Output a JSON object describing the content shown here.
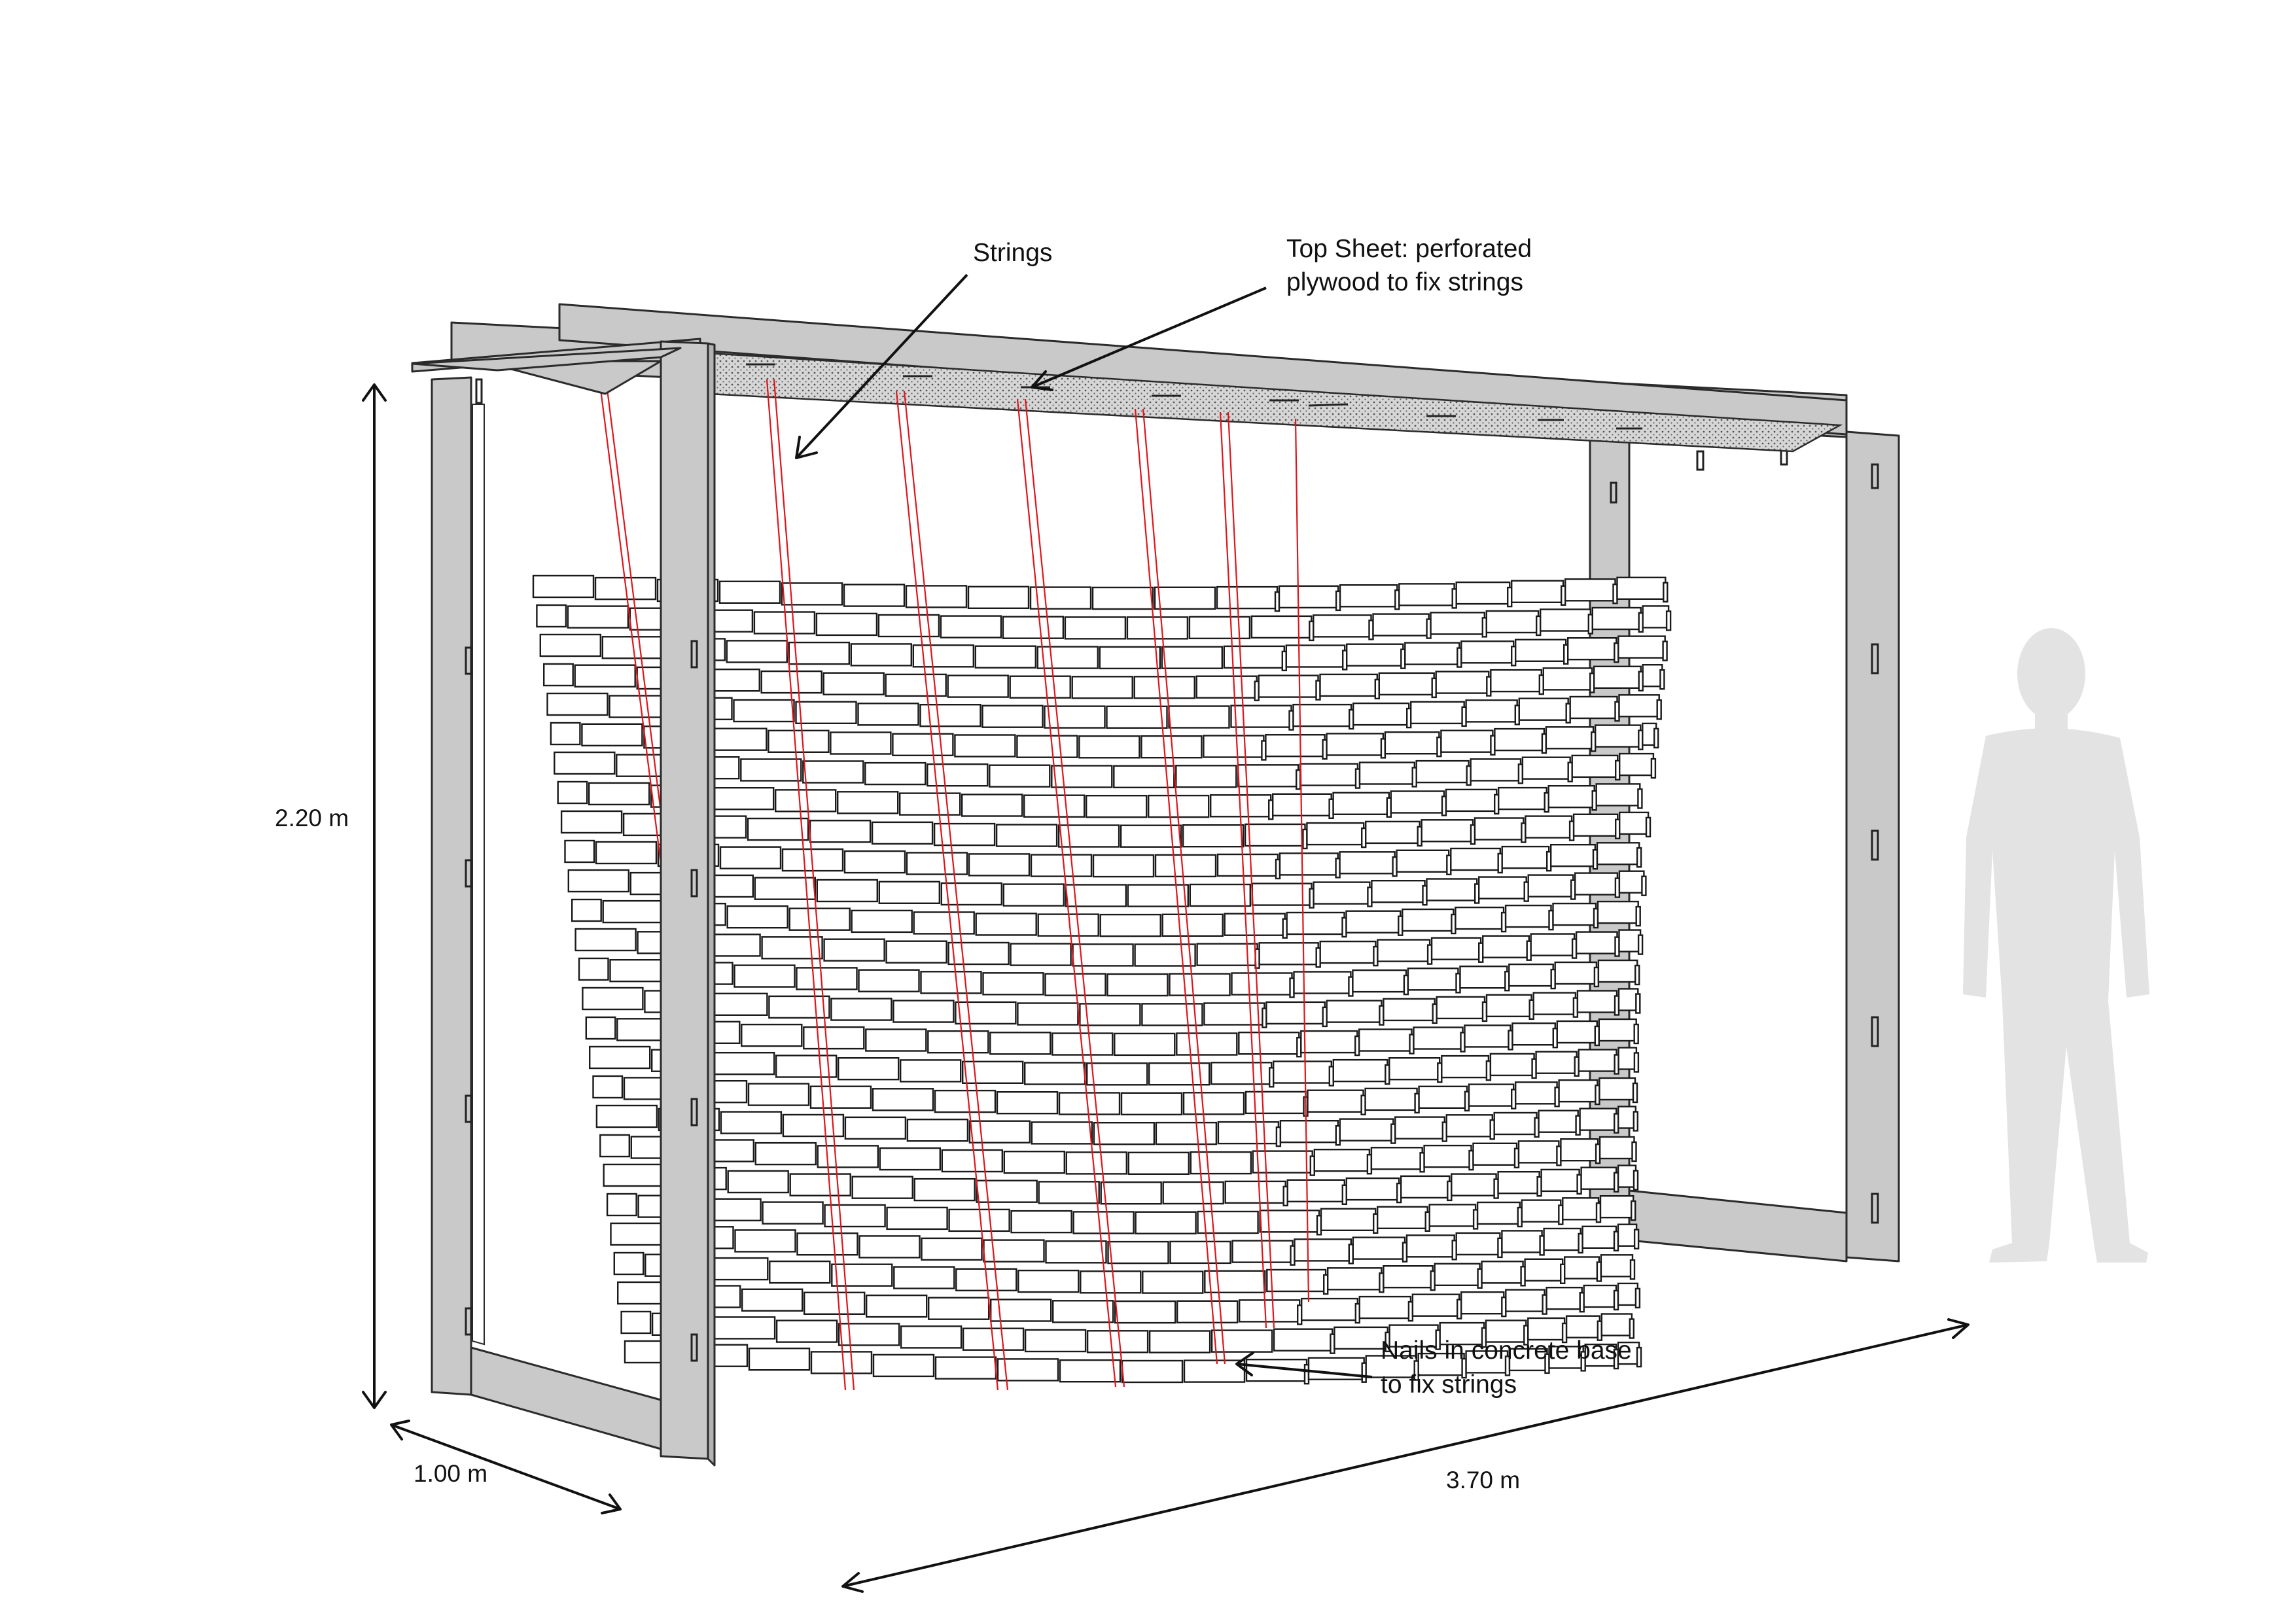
{
  "labels": {
    "strings": "Strings",
    "top_sheet_line1": "Top Sheet: perforated",
    "top_sheet_line2": "plywood to fix strings",
    "nails_line1": "Nails in concrete base",
    "nails_line2": "to fix strings"
  },
  "dimensions": {
    "height": "2.20 m",
    "depth": "1.00 m",
    "length": "3.70 m"
  },
  "colors": {
    "frame": "#c9c9c9",
    "string": "#e0151b",
    "person_silhouette": "#e3e3e3",
    "brick_outline": "#1a1a1a"
  }
}
